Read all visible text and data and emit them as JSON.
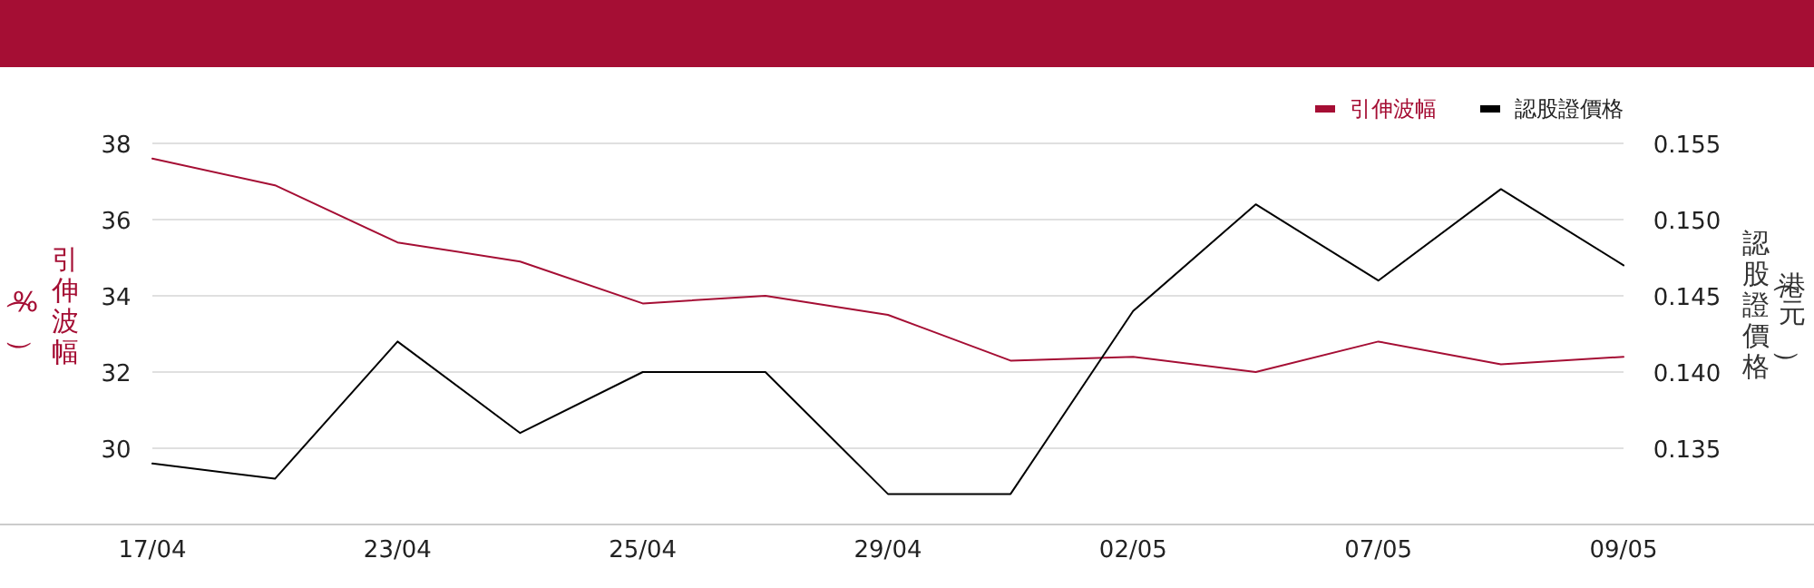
{
  "chart_data": {
    "type": "line",
    "ylabel": "引伸波幅（%）",
    "y2label": "認股證價格（港元）",
    "categories": [
      "17/04",
      null,
      "23/04",
      null,
      "25/04",
      null,
      "29/04",
      null,
      "02/05",
      null,
      "07/05",
      null,
      "09/05"
    ],
    "series": [
      {
        "name": "引伸波幅",
        "color": "#a50e34",
        "values": [
          37.6,
          36.9,
          35.4,
          34.9,
          33.8,
          34.0,
          33.5,
          32.3,
          32.4,
          32.0,
          32.8,
          32.2,
          32.4
        ]
      },
      {
        "name": "認股證價格",
        "color": "#000000",
        "axis": "y2",
        "values": [
          0.134,
          0.133,
          0.142,
          0.136,
          0.14,
          0.14,
          0.132,
          0.132,
          0.144,
          0.151,
          0.146,
          0.152,
          0.147
        ]
      }
    ],
    "ylim": [
      28,
      38
    ],
    "yticks": [
      30,
      32,
      34,
      36,
      38
    ],
    "y2lim": [
      0.13,
      0.155
    ],
    "y2ticks": [
      0.135,
      {
        "value": 0.14,
        "label": "0.140"
      },
      0.145,
      {
        "value": 0.15,
        "label": "0.150"
      },
      0.155
    ],
    "grid": "y",
    "legend": "top right",
    "marker": "none",
    "line_style": "solid"
  }
}
